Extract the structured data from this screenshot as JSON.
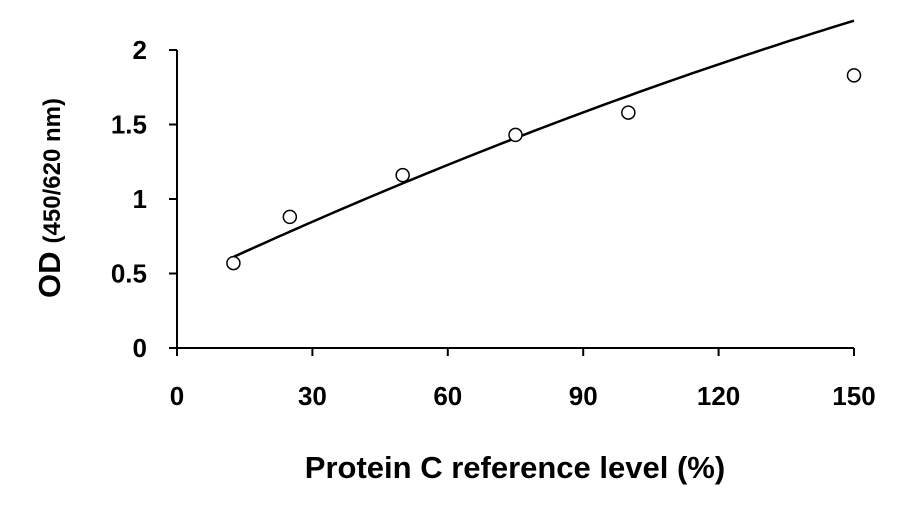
{
  "chart_data": {
    "type": "scatter",
    "title": "",
    "xlabel": "Protein C reference level (%)",
    "ylabel_main": "OD",
    "ylabel_sub": "(450/620 nm)",
    "xlim": [
      0,
      150
    ],
    "ylim": [
      0,
      2
    ],
    "x_ticks": [
      0,
      30,
      60,
      90,
      120,
      150
    ],
    "y_ticks": [
      0,
      0.5,
      1,
      1.5,
      2
    ],
    "x_tick_labels": [
      "0",
      "30",
      "60",
      "90",
      "120",
      "150"
    ],
    "y_tick_labels": [
      "0",
      "0.5",
      "1",
      "1.5",
      "2"
    ],
    "grid": false,
    "legend": "none",
    "series": [
      {
        "marker": "open-circle",
        "x": [
          12.5,
          25,
          50,
          75,
          100,
          150
        ],
        "y": [
          0.57,
          0.88,
          1.16,
          1.43,
          1.58,
          1.83
        ]
      }
    ],
    "fit": {
      "type": "quadratic",
      "x_range": [
        12.5,
        150
      ],
      "coefficients": [
        0.436,
        0.0142,
        -1.64e-05
      ]
    }
  }
}
